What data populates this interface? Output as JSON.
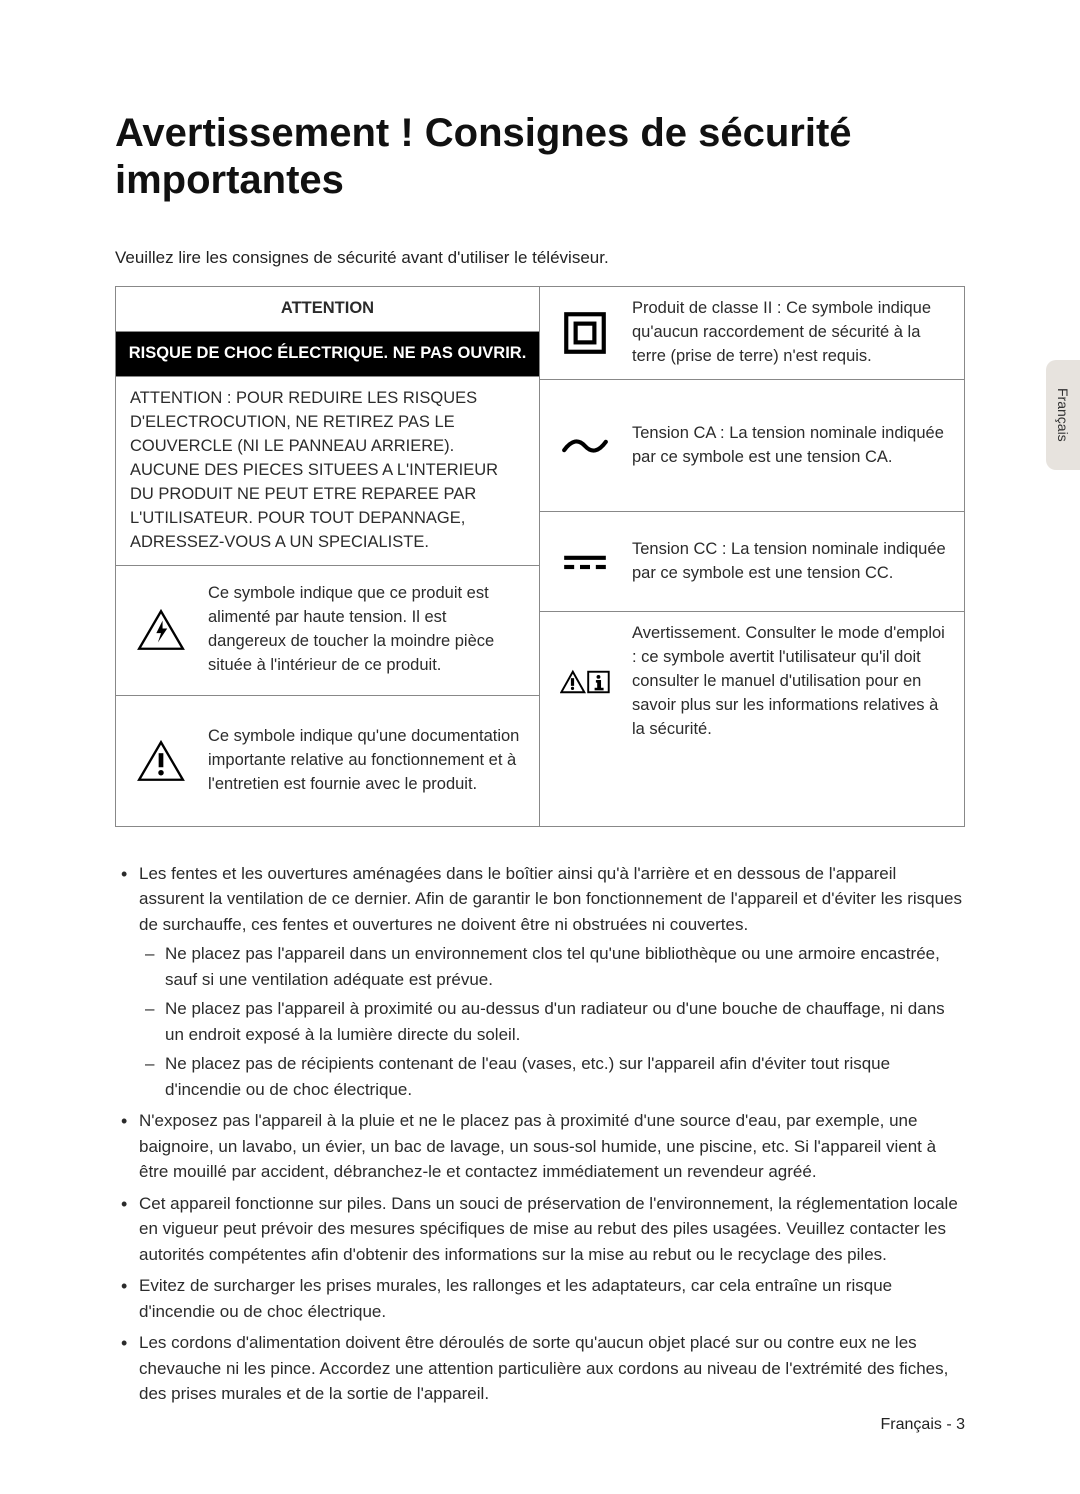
{
  "title": "Avertissement ! Consignes de sécurité importantes",
  "intro": "Veuillez lire les consignes de sécurité avant d'utiliser le téléviseur.",
  "side_tab": "Français",
  "footer": "Français - 3",
  "table": {
    "left": {
      "header1": "ATTENTION",
      "header2": "RISQUE DE CHOC ÉLECTRIQUE. NE PAS OUVRIR.",
      "warning_text": "ATTENTION : POUR REDUIRE LES RISQUES D'ELECTROCUTION, NE RETIREZ PAS LE COUVERCLE (NI LE PANNEAU ARRIERE). AUCUNE DES PIECES SITUEES A L'INTERIEUR DU PRODUIT NE PEUT ETRE REPAREE PAR L'UTILISATEUR. POUR TOUT DEPANNAGE, ADRESSEZ-VOUS A UN SPECIALISTE.",
      "bolt_text": "Ce symbole indique que ce produit est alimenté par haute tension. Il est dangereux de toucher la moindre pièce située à l'intérieur de ce produit.",
      "excl_text": "Ce symbole indique qu'une documentation importante relative au fonctionnement et à l'entretien est fournie avec le produit."
    },
    "right": {
      "class2_text": "Produit de classe II : Ce symbole indique qu'aucun raccordement de sécurité à la terre (prise de terre) n'est requis.",
      "ac_text": "Tension CA : La tension nominale indiquée par ce symbole est une tension CA.",
      "dc_text": "Tension CC : La tension nominale indiquée par ce symbole est une tension CC.",
      "manual_text": "Avertissement. Consulter le mode d'emploi : ce symbole avertit l'utilisateur qu'il doit consulter le manuel d'utilisation pour en savoir plus sur les informations relatives à la sécurité."
    }
  },
  "bullets": [
    {
      "text": "Les fentes et les ouvertures aménagées dans le boîtier ainsi qu'à l'arrière et en dessous de l'appareil assurent la ventilation de ce dernier. Afin de garantir le bon fonctionnement de l'appareil et d'éviter les risques de surchauffe, ces fentes et ouvertures ne doivent être ni obstruées ni couvertes.",
      "sub": [
        "Ne placez pas l'appareil dans un environnement clos tel qu'une bibliothèque ou une armoire encastrée, sauf si une ventilation adéquate est prévue.",
        "Ne placez pas l'appareil à proximité ou au-dessus d'un radiateur ou d'une bouche de chauffage, ni dans un endroit exposé à la lumière directe du soleil.",
        "Ne placez pas de récipients contenant de l'eau (vases, etc.) sur l'appareil afin d'éviter tout risque d'incendie ou de choc électrique."
      ]
    },
    {
      "text": "N'exposez pas l'appareil à la pluie et ne le placez pas à proximité d'une source d'eau, par exemple, une baignoire, un lavabo, un évier, un bac de lavage, un sous-sol humide, une piscine, etc. Si l'appareil vient à être mouillé par accident, débranchez-le et contactez immédiatement un revendeur agréé."
    },
    {
      "text": "Cet appareil fonctionne sur piles. Dans un souci de préservation de l'environnement, la réglementation locale en vigueur peut prévoir des mesures spécifiques de mise au rebut des piles usagées. Veuillez contacter les autorités compétentes afin d'obtenir des informations sur la mise au rebut ou le recyclage des piles."
    },
    {
      "text": "Evitez de surcharger les prises murales, les rallonges et les adaptateurs, car cela entraîne un risque d'incendie ou de choc électrique."
    },
    {
      "text": "Les cordons d'alimentation doivent être déroulés de sorte qu'aucun objet placé sur ou contre eux ne les chevauche ni les pince. Accordez une attention particulière aux cordons au niveau de l'extrémité des fiches, des prises murales et de la sortie de l'appareil."
    }
  ]
}
